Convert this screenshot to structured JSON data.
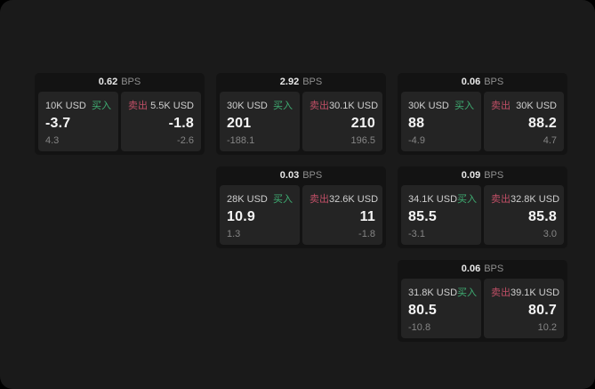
{
  "page": {
    "window_bg": "#1a1a1a",
    "outer_bg": "#000000"
  },
  "colors": {
    "card_bg": "#131313",
    "panel_bg": "#242424",
    "buy_green": "#3fae73",
    "sell_red": "#c04f66",
    "text_bright": "#e8e8e8",
    "text_unit": "#8f8f8f",
    "text_label": "#cfcfcf",
    "text_primary": "#f5f5f5",
    "text_muted": "#858585"
  },
  "labels": {
    "bps_unit": "BPS",
    "buy": "买入",
    "sell": "卖出"
  },
  "cards": [
    {
      "col": 1,
      "row": 1,
      "bps": "0.62",
      "buy": {
        "amount": "10K USD",
        "value": "-3.7",
        "delta": "4.3"
      },
      "sell": {
        "amount": "5.5K USD",
        "value": "-1.8",
        "delta": "-2.6"
      }
    },
    {
      "col": 2,
      "row": 1,
      "bps": "2.92",
      "buy": {
        "amount": "30K USD",
        "value": "201",
        "delta": "-188.1"
      },
      "sell": {
        "amount": "30.1K USD",
        "value": "210",
        "delta": "196.5"
      }
    },
    {
      "col": 3,
      "row": 1,
      "bps": "0.06",
      "buy": {
        "amount": "30K USD",
        "value": "88",
        "delta": "-4.9"
      },
      "sell": {
        "amount": "30K USD",
        "value": "88.2",
        "delta": "4.7"
      }
    },
    {
      "col": 2,
      "row": 2,
      "bps": "0.03",
      "buy": {
        "amount": "28K USD",
        "value": "10.9",
        "delta": "1.3"
      },
      "sell": {
        "amount": "32.6K USD",
        "value": "11",
        "delta": "-1.8"
      }
    },
    {
      "col": 3,
      "row": 2,
      "bps": "0.09",
      "buy": {
        "amount": "34.1K USD",
        "value": "85.5",
        "delta": "-3.1"
      },
      "sell": {
        "amount": "32.8K USD",
        "value": "85.8",
        "delta": "3.0"
      }
    },
    {
      "col": 3,
      "row": 3,
      "bps": "0.06",
      "buy": {
        "amount": "31.8K USD",
        "value": "80.5",
        "delta": "-10.8"
      },
      "sell": {
        "amount": "39.1K USD",
        "value": "80.7",
        "delta": "10.2"
      }
    }
  ]
}
